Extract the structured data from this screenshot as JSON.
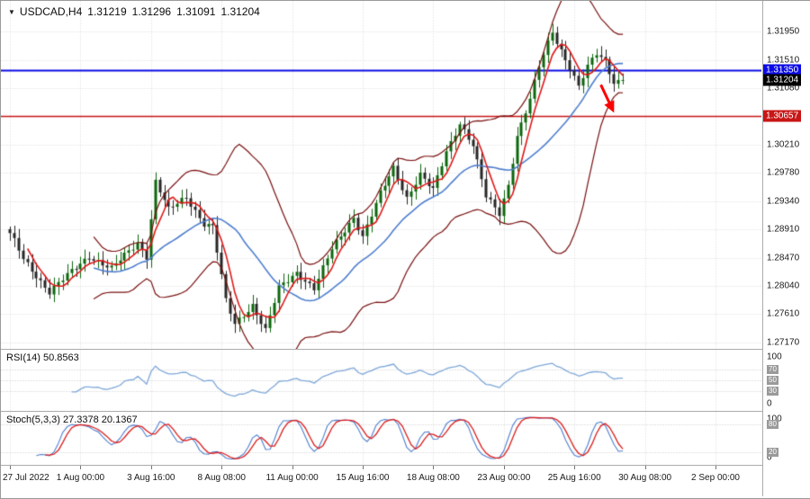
{
  "chart_header": {
    "collapse_icon": "▼",
    "symbol_period": "USDCAD,H4",
    "open": "1.31219",
    "high": "1.31296",
    "low": "1.31091",
    "close": "1.31204"
  },
  "colors": {
    "background": "#ffffff",
    "grid": "#d8d8d8",
    "border": "#ababab",
    "candle_up": "#0c660c",
    "candle_down": "#262626",
    "bollinger": "#7a1010",
    "ma_fast": "#e01818",
    "ma_slow": "#4f7fd0",
    "hline_blue": "#0a0ae6",
    "hline_red": "#c81616",
    "current_price_badge": "#000000",
    "rsi_line": "#7fa8d9",
    "stoch_k": "#4f7fd0",
    "stoch_d": "#dd1c1c",
    "level_line": "#c4c4c4",
    "badge_gray": "#9a9a9a",
    "axis_text": "#1a1a1a",
    "arrow": "#ff0000"
  },
  "price_axis": {
    "ticks": [
      {
        "label": "1.31950",
        "value": 1.3195
      },
      {
        "label": "1.31510",
        "value": 1.3151
      },
      {
        "label": "1.31080",
        "value": 1.3108
      },
      {
        "label": "1.30210",
        "value": 1.3021
      },
      {
        "label": "1.29780",
        "value": 1.2978
      },
      {
        "label": "1.29340",
        "value": 1.2934
      },
      {
        "label": "1.28910",
        "value": 1.2891
      },
      {
        "label": "1.28470",
        "value": 1.2847
      },
      {
        "label": "1.28040",
        "value": 1.2804
      },
      {
        "label": "1.27610",
        "value": 1.2761
      },
      {
        "label": "1.27170",
        "value": 1.2717
      }
    ],
    "unlabeled_grid_values": [
      1.3065
    ]
  },
  "badges": {
    "blue": {
      "label": "1.31350",
      "value": 1.3135
    },
    "current": {
      "label": "1.31204",
      "value": 1.31204
    },
    "red": {
      "label": "1.30657",
      "value": 1.30657
    }
  },
  "indicators": {
    "rsi": {
      "label": "RSI(14) 50.8563",
      "name": "RSI",
      "period": 14,
      "value": 50.8563,
      "scale_top": "100",
      "scale_bottom": "0",
      "levels": [
        70,
        50,
        30
      ]
    },
    "stoch": {
      "label": "Stoch(5,3,3) 27.3378 20.1367",
      "name": "Stochastic",
      "params": [
        5,
        3,
        3
      ],
      "value_main": 27.3378,
      "value_signal": 20.1367,
      "scale_top": "100",
      "scale_bottom": "0",
      "levels": [
        80,
        20
      ]
    }
  },
  "time_axis": {
    "labels": [
      {
        "text": "27 Jul 2022",
        "candle": 0
      },
      {
        "text": "1 Aug 00:00",
        "candle": 16
      },
      {
        "text": "3 Aug 16:00",
        "candle": 32
      },
      {
        "text": "8 Aug 08:00",
        "candle": 48
      },
      {
        "text": "11 Aug 00:00",
        "candle": 64
      },
      {
        "text": "15 Aug 16:00",
        "candle": 80
      },
      {
        "text": "18 Aug 08:00",
        "candle": 96
      },
      {
        "text": "23 Aug 00:00",
        "candle": 112
      },
      {
        "text": "25 Aug 16:00",
        "candle": 128
      },
      {
        "text": "30 Aug 08:00",
        "candle": 144
      },
      {
        "text": "2 Sep 00:00",
        "candle": 160
      }
    ]
  },
  "chart_data": {
    "type": "candlestick",
    "symbol": "USDCAD",
    "timeframe": "H4",
    "title": "USDCAD,H4 1.31219 1.31296 1.31091 1.31204",
    "price_range_visible": [
      1.2707,
      1.3242
    ],
    "candle_count": 140,
    "note": "close_anchors are [candle_index, close_price] swing points read from the chart; intermediate H4 closes are linearly interpolated",
    "close_anchors": [
      [
        0,
        1.2885
      ],
      [
        3,
        1.2845
      ],
      [
        9,
        1.2795
      ],
      [
        18,
        1.285
      ],
      [
        23,
        1.283
      ],
      [
        29,
        1.287
      ],
      [
        31,
        1.285
      ],
      [
        33,
        1.2965
      ],
      [
        36,
        1.292
      ],
      [
        40,
        1.294
      ],
      [
        44,
        1.29
      ],
      [
        46,
        1.2895
      ],
      [
        49,
        1.278
      ],
      [
        51,
        1.2745
      ],
      [
        55,
        1.2775
      ],
      [
        58,
        1.2735
      ],
      [
        61,
        1.28
      ],
      [
        65,
        1.2825
      ],
      [
        69,
        1.28
      ],
      [
        73,
        1.286
      ],
      [
        78,
        1.291
      ],
      [
        80,
        1.288
      ],
      [
        84,
        1.2945
      ],
      [
        87,
        1.2985
      ],
      [
        90,
        1.294
      ],
      [
        93,
        1.2975
      ],
      [
        96,
        1.295
      ],
      [
        99,
        1.301
      ],
      [
        102,
        1.3055
      ],
      [
        105,
        1.302
      ],
      [
        108,
        1.294
      ],
      [
        111,
        1.2915
      ],
      [
        113,
        1.296
      ],
      [
        115,
        1.3035
      ],
      [
        118,
        1.309
      ],
      [
        120,
        1.314
      ],
      [
        123,
        1.3195
      ],
      [
        124,
        1.318
      ],
      [
        127,
        1.314
      ],
      [
        129,
        1.311
      ],
      [
        131,
        1.314
      ],
      [
        133,
        1.316
      ],
      [
        135,
        1.315
      ],
      [
        137,
        1.3118
      ],
      [
        139,
        1.31204
      ]
    ],
    "last_price": 1.31204,
    "overlays": [
      {
        "name": "Bollinger Bands",
        "period": 20,
        "deviation": 2
      },
      {
        "name": "Fast MA",
        "period": 5
      },
      {
        "name": "Slow MA / BB middle",
        "period": 20
      }
    ],
    "horizontal_lines": [
      {
        "price": 1.3135,
        "label": "1.31350",
        "color_key": "hline_blue",
        "width": 2
      },
      {
        "price": 1.30657,
        "label": "1.30657",
        "color_key": "hline_red",
        "width": 1.5
      }
    ],
    "oscillators": [
      {
        "name": "RSI",
        "period": 14,
        "last_value": 50.8563,
        "range": [
          0,
          100
        ]
      },
      {
        "name": "Stochastic",
        "k": 5,
        "d": 3,
        "slowing": 3,
        "last_main": 27.3378,
        "last_signal": 20.1367,
        "range": [
          0,
          100
        ]
      }
    ],
    "annotation_arrow": {
      "from_candle": 134,
      "from_price": 1.3113,
      "to_candle": 137,
      "to_price": 1.307
    }
  }
}
